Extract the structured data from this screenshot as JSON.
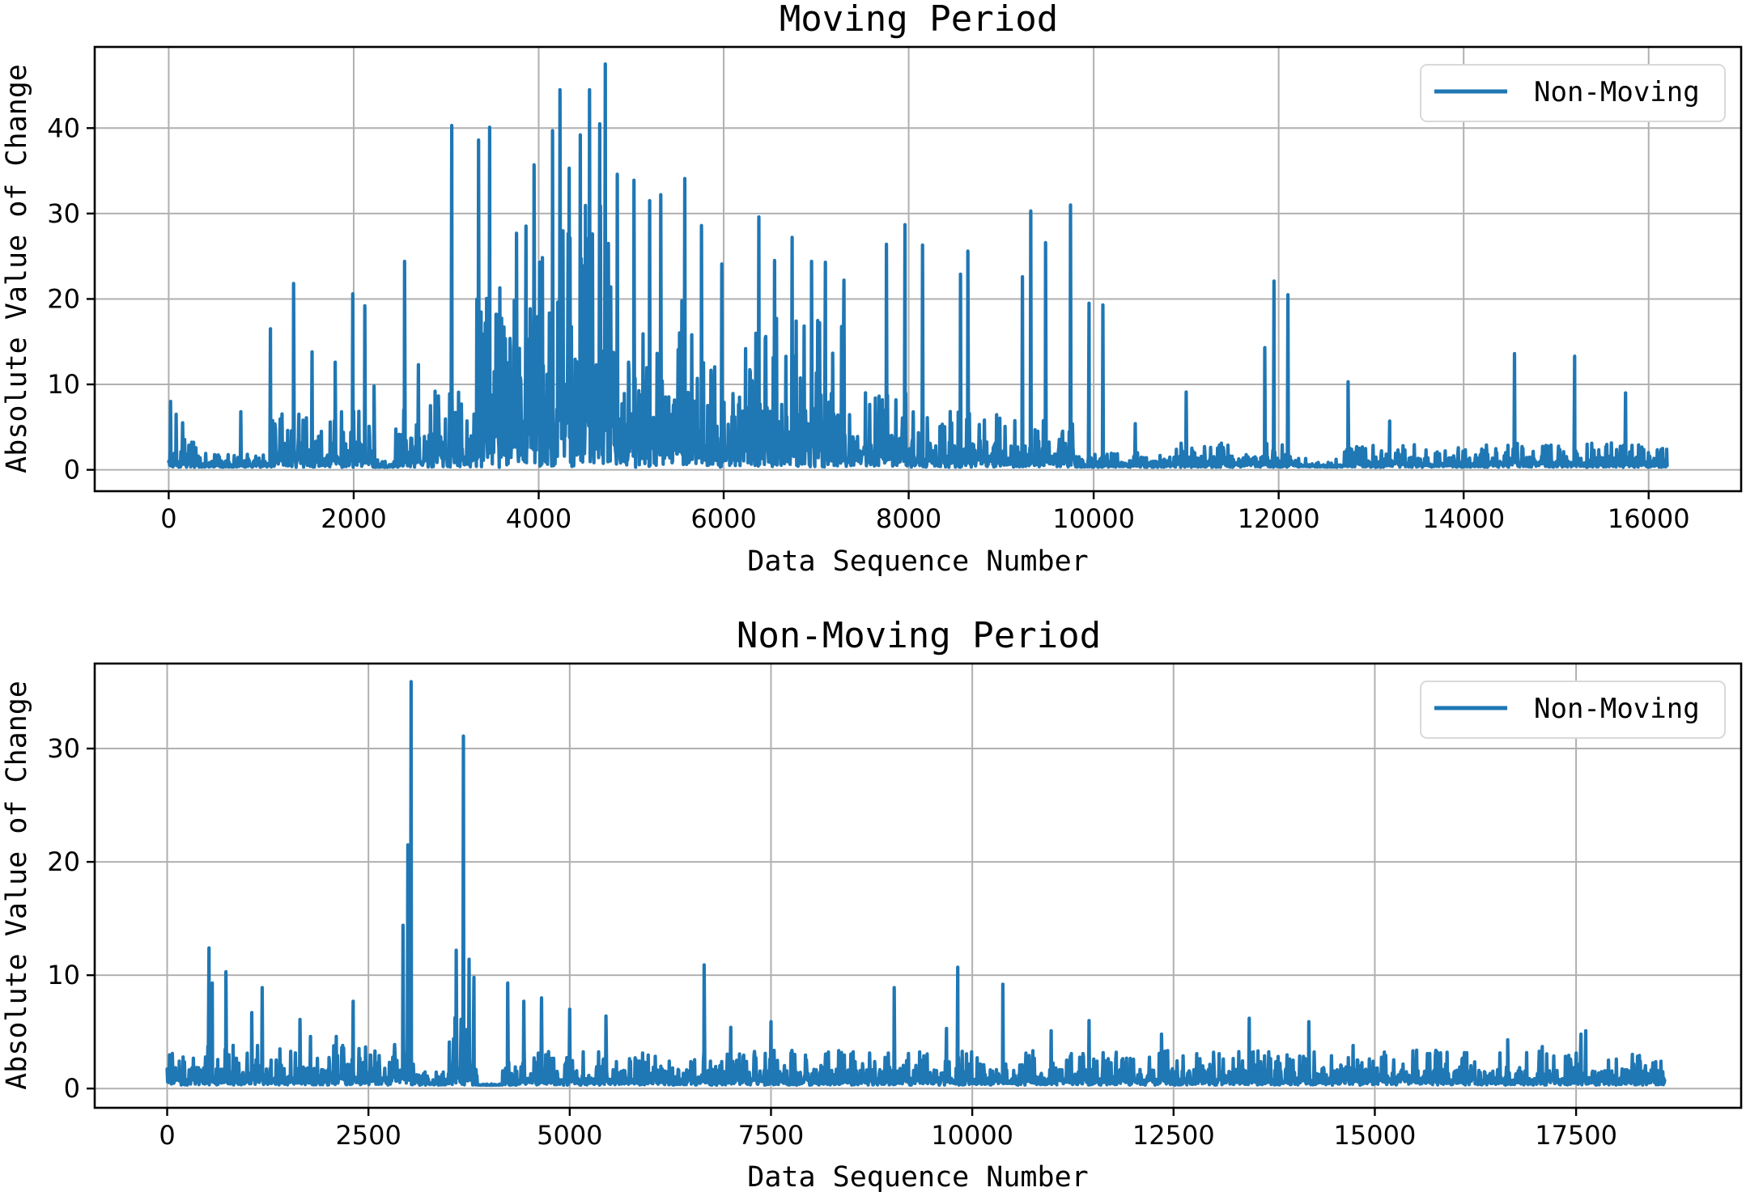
{
  "colors": {
    "series": "#1f77b4",
    "grid": "#b0b0b0",
    "frame": "#000000"
  },
  "chart_data": [
    {
      "type": "line",
      "title": "Moving Period",
      "xlabel": "Data Sequence Number",
      "ylabel": "Absolute Value of Change",
      "xlim": [
        -800,
        17000
      ],
      "ylim": [
        -2.5,
        49.5
      ],
      "xticks": [
        0,
        2000,
        4000,
        6000,
        8000,
        10000,
        12000,
        14000,
        16000
      ],
      "yticks": [
        0,
        10,
        20,
        30,
        40
      ],
      "grid": true,
      "legend_position": "top-right",
      "series": [
        {
          "name": "Non-Moving",
          "x_range": [
            0,
            16200
          ],
          "baseline": 0.3,
          "noise_bands": [
            [
              0,
              300,
              1.5
            ],
            [
              300,
              1100,
              0.8
            ],
            [
              1100,
              2200,
              3
            ],
            [
              2200,
              2450,
              0.4
            ],
            [
              2450,
              3300,
              4
            ],
            [
              3300,
              3800,
              9
            ],
            [
              3800,
              4800,
              14
            ],
            [
              4800,
              5700,
              9
            ],
            [
              5700,
              6200,
              6
            ],
            [
              6200,
              7300,
              8
            ],
            [
              7300,
              8000,
              4
            ],
            [
              8000,
              9000,
              3
            ],
            [
              9000,
              9800,
              2.5
            ],
            [
              9800,
              10800,
              0.8
            ],
            [
              10800,
              12200,
              1.3
            ],
            [
              12200,
              12700,
              0.5
            ],
            [
              12700,
              14500,
              1.2
            ],
            [
              14500,
              16200,
              1.3
            ]
          ],
          "peaks": [
            [
              20,
              8
            ],
            [
              80,
              6.5
            ],
            [
              150,
              5.5
            ],
            [
              780,
              6.8
            ],
            [
              1100,
              16.5
            ],
            [
              1350,
              21.8
            ],
            [
              1550,
              13.8
            ],
            [
              1800,
              12.6
            ],
            [
              1990,
              20.6
            ],
            [
              2120,
              19.2
            ],
            [
              2220,
              9.8
            ],
            [
              2550,
              24.4
            ],
            [
              2700,
              12.3
            ],
            [
              2880,
              9.2
            ],
            [
              3060,
              40.3
            ],
            [
              3350,
              38.6
            ],
            [
              3470,
              40.1
            ],
            [
              3580,
              21.3
            ],
            [
              3760,
              27.7
            ],
            [
              3950,
              35.7
            ],
            [
              4150,
              39.7
            ],
            [
              4230,
              44.5
            ],
            [
              4330,
              35.3
            ],
            [
              4450,
              39.2
            ],
            [
              4550,
              44.5
            ],
            [
              4660,
              40.5
            ],
            [
              4720,
              47.5
            ],
            [
              4850,
              34.6
            ],
            [
              5030,
              33.9
            ],
            [
              5200,
              31.5
            ],
            [
              5320,
              32.2
            ],
            [
              5580,
              34.1
            ],
            [
              5760,
              28.6
            ],
            [
              5980,
              24.1
            ],
            [
              6380,
              29.6
            ],
            [
              6550,
              24.5
            ],
            [
              6740,
              27.2
            ],
            [
              6950,
              24.4
            ],
            [
              7100,
              24.3
            ],
            [
              7300,
              22.2
            ],
            [
              7760,
              26.4
            ],
            [
              7960,
              28.7
            ],
            [
              8150,
              26.3
            ],
            [
              8560,
              22.9
            ],
            [
              8640,
              25.6
            ],
            [
              9230,
              22.6
            ],
            [
              9320,
              30.3
            ],
            [
              9480,
              26.6
            ],
            [
              9750,
              31.0
            ],
            [
              9950,
              19.5
            ],
            [
              10100,
              19.3
            ],
            [
              10450,
              5.4
            ],
            [
              11000,
              9.1
            ],
            [
              11850,
              14.3
            ],
            [
              11950,
              22.1
            ],
            [
              12100,
              20.5
            ],
            [
              12750,
              10.3
            ],
            [
              13200,
              5.7
            ],
            [
              14550,
              13.6
            ],
            [
              15200,
              13.3
            ],
            [
              15750,
              9.0
            ],
            [
              16150,
              2.5
            ]
          ]
        }
      ]
    },
    {
      "type": "line",
      "title": "Non-Moving Period",
      "xlabel": "Data Sequence Number",
      "ylabel": "Absolute Value of Change",
      "xlim": [
        -900,
        19550
      ],
      "ylim": [
        -1.7,
        37.5
      ],
      "xticks": [
        0,
        2500,
        5000,
        7500,
        10000,
        12500,
        15000,
        17500
      ],
      "yticks": [
        0,
        10,
        20,
        30
      ],
      "grid": true,
      "legend_position": "top-right",
      "series": [
        {
          "name": "Non-Moving",
          "x_range": [
            0,
            18600
          ],
          "baseline": 0.3,
          "noise_bands": [
            [
              0,
              2800,
              1.6
            ],
            [
              2800,
              3100,
              3
            ],
            [
              3100,
              3500,
              0.6
            ],
            [
              3500,
              3850,
              3
            ],
            [
              3850,
              4150,
              0.05
            ],
            [
              4150,
              18600,
              1.4
            ]
          ],
          "peaks": [
            [
              520,
              12.4
            ],
            [
              560,
              9.3
            ],
            [
              730,
              10.3
            ],
            [
              1050,
              6.7
            ],
            [
              1180,
              8.9
            ],
            [
              1650,
              6.1
            ],
            [
              1780,
              4.6
            ],
            [
              2100,
              4.6
            ],
            [
              2310,
              7.7
            ],
            [
              2930,
              14.4
            ],
            [
              2990,
              21.5
            ],
            [
              3030,
              35.9
            ],
            [
              3590,
              12.2
            ],
            [
              3680,
              31.1
            ],
            [
              3750,
              11.4
            ],
            [
              3810,
              9.8
            ],
            [
              4230,
              9.3
            ],
            [
              4430,
              7.7
            ],
            [
              4650,
              8.0
            ],
            [
              5000,
              7.0
            ],
            [
              5450,
              6.4
            ],
            [
              6670,
              10.9
            ],
            [
              7000,
              5.4
            ],
            [
              7500,
              5.9
            ],
            [
              9030,
              8.9
            ],
            [
              9680,
              5.3
            ],
            [
              9820,
              10.7
            ],
            [
              10380,
              9.2
            ],
            [
              10980,
              5.1
            ],
            [
              11450,
              6.0
            ],
            [
              12350,
              4.8
            ],
            [
              13440,
              6.2
            ],
            [
              14180,
              5.9
            ],
            [
              14730,
              3.8
            ],
            [
              16650,
              4.3
            ],
            [
              17080,
              3.7
            ],
            [
              17560,
              4.8
            ],
            [
              17620,
              5.1
            ],
            [
              18000,
              2.6
            ],
            [
              18500,
              1.6
            ]
          ]
        }
      ]
    }
  ]
}
